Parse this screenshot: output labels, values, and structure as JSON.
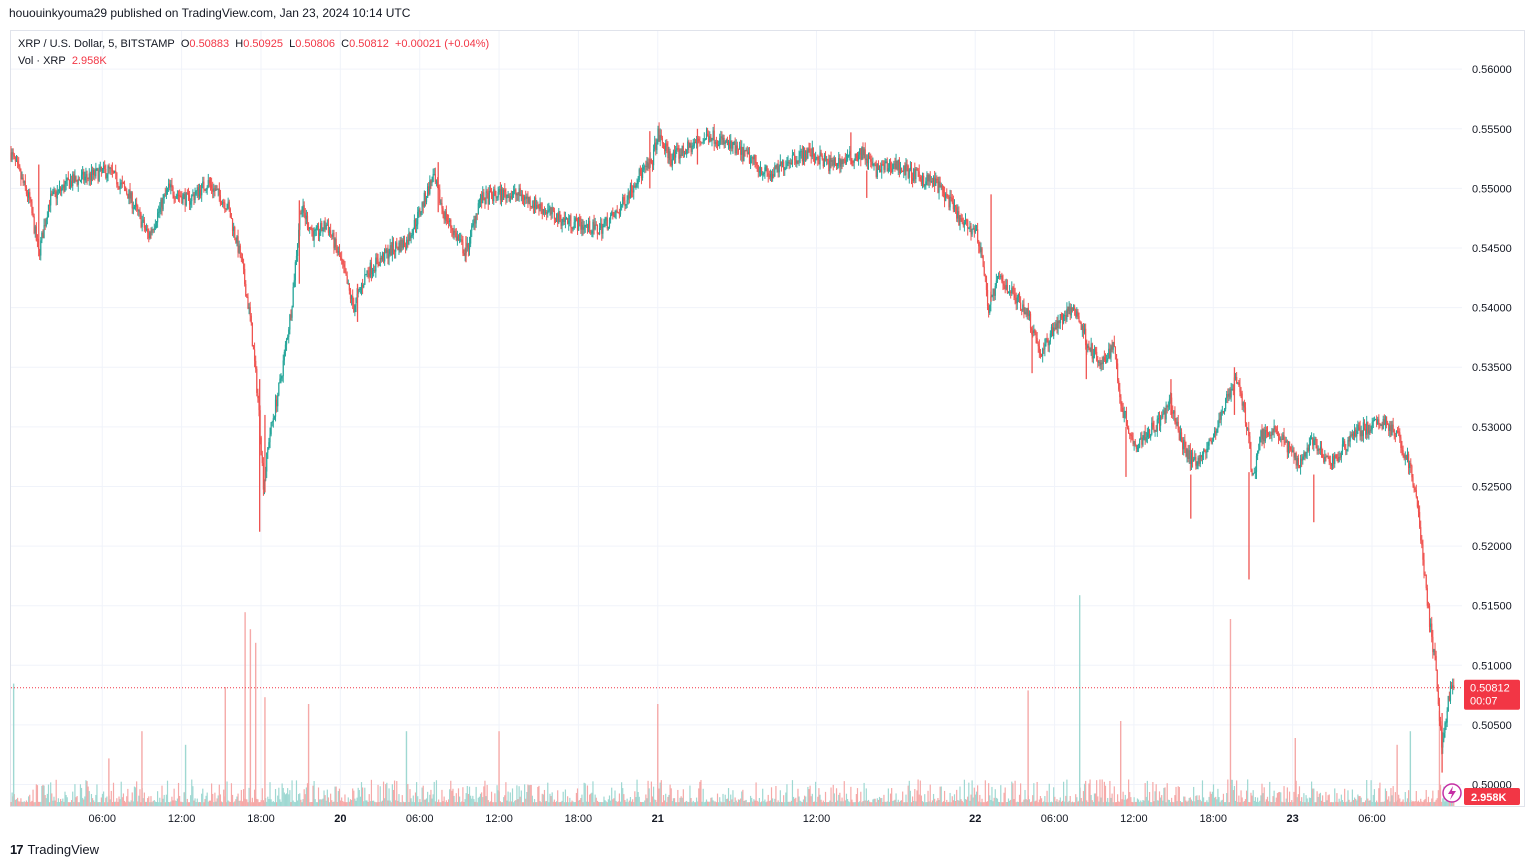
{
  "header": {
    "published_line": "hououinkyouma29 published on TradingView.com, Jan 23, 2024 10:14 UTC"
  },
  "legend": {
    "symbol": "XRP / U.S. Dollar, 5, BITSTAMP",
    "o_label": "O",
    "o_value": "0.50883",
    "h_label": "H",
    "h_value": "0.50925",
    "l_label": "L",
    "l_value": "0.50806",
    "c_label": "C",
    "c_value": "0.50812",
    "change": "+0.00021 (+0.04%)",
    "vol_label": "Vol · XRP",
    "vol_value": "2.958K"
  },
  "price_label": {
    "price": "0.50812",
    "countdown": "00:07"
  },
  "volume_label": "2.958K",
  "footer": {
    "brand": "TradingView"
  },
  "colors": {
    "up": "#26a69a",
    "down": "#ef5350",
    "up_vol": "#9fd8d2",
    "down_vol": "#f5a9a8",
    "last": "#f23645",
    "grid": "#f0f3fa"
  },
  "chart_data": {
    "type": "candlestick",
    "symbol": "XRP / U.S. Dollar",
    "interval": "5",
    "exchange": "BITSTAMP",
    "y_ticks": [
      "0.50000",
      "0.50500",
      "0.51000",
      "0.51500",
      "0.52000",
      "0.52500",
      "0.53000",
      "0.53500",
      "0.54000",
      "0.54500",
      "0.55000",
      "0.55500",
      "0.56000"
    ],
    "ylim": [
      0.4982,
      0.5632
    ],
    "x_ticks": [
      "06:00",
      "12:00",
      "18:00",
      "20",
      "06:00",
      "12:00",
      "18:00",
      "21",
      "12:00",
      "22",
      "06:00",
      "12:00",
      "18:00",
      "23",
      "06:00"
    ],
    "x_tick_hours": [
      6,
      12,
      18,
      24,
      30,
      36,
      42,
      48,
      60,
      72,
      78,
      84,
      90,
      96,
      102
    ],
    "x_range_hours": [
      -0.9,
      108.2
    ],
    "last_price": 0.50812,
    "price_path": [
      [
        -0.9,
        0.553
      ],
      [
        0.5,
        0.549
      ],
      [
        1.2,
        0.5445
      ],
      [
        2.0,
        0.549
      ],
      [
        3.5,
        0.5505
      ],
      [
        5.0,
        0.551
      ],
      [
        6.5,
        0.5515
      ],
      [
        8.0,
        0.5495
      ],
      [
        9.5,
        0.546
      ],
      [
        11.0,
        0.55
      ],
      [
        12.5,
        0.549
      ],
      [
        14.0,
        0.5505
      ],
      [
        15.5,
        0.5485
      ],
      [
        16.5,
        0.544
      ],
      [
        17.2,
        0.539
      ],
      [
        17.8,
        0.532
      ],
      [
        18.2,
        0.525
      ],
      [
        18.6,
        0.529
      ],
      [
        19.5,
        0.534
      ],
      [
        20.3,
        0.54
      ],
      [
        21.0,
        0.5485
      ],
      [
        22.0,
        0.546
      ],
      [
        23.0,
        0.547
      ],
      [
        24.0,
        0.544
      ],
      [
        25.0,
        0.54
      ],
      [
        26.0,
        0.543
      ],
      [
        27.0,
        0.544
      ],
      [
        28.0,
        0.545
      ],
      [
        29.0,
        0.5455
      ],
      [
        30.0,
        0.548
      ],
      [
        31.0,
        0.551
      ],
      [
        31.8,
        0.548
      ],
      [
        32.5,
        0.5465
      ],
      [
        33.5,
        0.5445
      ],
      [
        34.5,
        0.549
      ],
      [
        36.0,
        0.5495
      ],
      [
        37.5,
        0.5495
      ],
      [
        39.0,
        0.5485
      ],
      [
        40.5,
        0.5475
      ],
      [
        42.0,
        0.547
      ],
      [
        43.5,
        0.5465
      ],
      [
        45.0,
        0.548
      ],
      [
        46.5,
        0.551
      ],
      [
        47.5,
        0.552
      ],
      [
        48.0,
        0.5545
      ],
      [
        49.0,
        0.5525
      ],
      [
        50.5,
        0.5535
      ],
      [
        52.0,
        0.5545
      ],
      [
        53.5,
        0.5535
      ],
      [
        55.0,
        0.5525
      ],
      [
        56.5,
        0.551
      ],
      [
        58.0,
        0.5525
      ],
      [
        59.5,
        0.553
      ],
      [
        61.0,
        0.552
      ],
      [
        62.5,
        0.5525
      ],
      [
        63.5,
        0.553
      ],
      [
        64.5,
        0.5515
      ],
      [
        66.0,
        0.552
      ],
      [
        67.5,
        0.551
      ],
      [
        69.0,
        0.5505
      ],
      [
        70.0,
        0.549
      ],
      [
        71.0,
        0.547
      ],
      [
        72.0,
        0.5465
      ],
      [
        72.5,
        0.5445
      ],
      [
        73.0,
        0.54
      ],
      [
        73.8,
        0.5425
      ],
      [
        75.0,
        0.541
      ],
      [
        76.0,
        0.5395
      ],
      [
        77.0,
        0.536
      ],
      [
        78.0,
        0.5385
      ],
      [
        79.5,
        0.54
      ],
      [
        80.5,
        0.537
      ],
      [
        81.5,
        0.535
      ],
      [
        82.5,
        0.537
      ],
      [
        83.0,
        0.532
      ],
      [
        84.0,
        0.5285
      ],
      [
        85.0,
        0.5295
      ],
      [
        86.0,
        0.5305
      ],
      [
        86.8,
        0.532
      ],
      [
        87.5,
        0.529
      ],
      [
        88.5,
        0.527
      ],
      [
        89.5,
        0.528
      ],
      [
        90.5,
        0.5305
      ],
      [
        91.0,
        0.5325
      ],
      [
        91.8,
        0.534
      ],
      [
        92.5,
        0.5305
      ],
      [
        93.0,
        0.5255
      ],
      [
        93.5,
        0.529
      ],
      [
        94.5,
        0.53
      ],
      [
        95.5,
        0.5285
      ],
      [
        96.5,
        0.527
      ],
      [
        97.5,
        0.529
      ],
      [
        98.5,
        0.527
      ],
      [
        99.5,
        0.5275
      ],
      [
        100.5,
        0.5295
      ],
      [
        102.0,
        0.53
      ],
      [
        103.0,
        0.5305
      ],
      [
        104.0,
        0.529
      ],
      [
        104.8,
        0.527
      ],
      [
        105.5,
        0.523
      ],
      [
        106.2,
        0.515
      ],
      [
        106.8,
        0.51
      ],
      [
        107.3,
        0.503
      ],
      [
        107.8,
        0.5075
      ],
      [
        108.2,
        0.5081
      ]
    ],
    "spikes": [
      {
        "x": 1.2,
        "low": 0.5443,
        "high": 0.552
      },
      {
        "x": 17.9,
        "low": 0.5212,
        "high": 0.534
      },
      {
        "x": 18.3,
        "low": 0.5245,
        "high": 0.531
      },
      {
        "x": 20.9,
        "low": 0.542,
        "high": 0.549
      },
      {
        "x": 25.3,
        "low": 0.5388,
        "high": 0.542
      },
      {
        "x": 31.4,
        "low": 0.548,
        "high": 0.5522
      },
      {
        "x": 33.5,
        "low": 0.5438,
        "high": 0.546
      },
      {
        "x": 47.4,
        "low": 0.55,
        "high": 0.5548
      },
      {
        "x": 51.0,
        "low": 0.552,
        "high": 0.555
      },
      {
        "x": 62.6,
        "low": 0.552,
        "high": 0.5547
      },
      {
        "x": 63.8,
        "low": 0.5492,
        "high": 0.5515
      },
      {
        "x": 73.2,
        "low": 0.5405,
        "high": 0.5495
      },
      {
        "x": 76.3,
        "low": 0.5345,
        "high": 0.538
      },
      {
        "x": 80.4,
        "low": 0.534,
        "high": 0.5372
      },
      {
        "x": 83.4,
        "low": 0.5258,
        "high": 0.53
      },
      {
        "x": 86.8,
        "low": 0.531,
        "high": 0.534
      },
      {
        "x": 88.3,
        "low": 0.5223,
        "high": 0.526
      },
      {
        "x": 91.6,
        "low": 0.531,
        "high": 0.535
      },
      {
        "x": 92.7,
        "low": 0.5172,
        "high": 0.5262
      },
      {
        "x": 97.6,
        "low": 0.522,
        "high": 0.526
      },
      {
        "x": 107.3,
        "low": 0.501,
        "high": 0.506
      }
    ],
    "volume_max_label": "2.958K",
    "volume_spikes": [
      {
        "x": 16.8,
        "v": 0.57,
        "dir": "down"
      },
      {
        "x": 17.2,
        "v": 0.52,
        "dir": "down"
      },
      {
        "x": 17.6,
        "v": 0.48,
        "dir": "down"
      },
      {
        "x": 15.3,
        "v": 0.35,
        "dir": "down"
      },
      {
        "x": 18.3,
        "v": 0.32,
        "dir": "down"
      },
      {
        "x": 21.6,
        "v": 0.3,
        "dir": "down"
      },
      {
        "x": -0.7,
        "v": 0.36,
        "dir": "up"
      },
      {
        "x": 79.9,
        "v": 0.62,
        "dir": "up"
      },
      {
        "x": 91.3,
        "v": 0.55,
        "dir": "down"
      },
      {
        "x": 48.0,
        "v": 0.3,
        "dir": "down"
      },
      {
        "x": 76.0,
        "v": 0.34,
        "dir": "down"
      },
      {
        "x": 83.0,
        "v": 0.25,
        "dir": "down"
      },
      {
        "x": 104.9,
        "v": 0.22,
        "dir": "up"
      },
      {
        "x": 107.1,
        "v": 0.28,
        "dir": "down"
      },
      {
        "x": 12.3,
        "v": 0.18,
        "dir": "up"
      },
      {
        "x": 29.0,
        "v": 0.22,
        "dir": "up"
      },
      {
        "x": 36.0,
        "v": 0.22,
        "dir": "down"
      },
      {
        "x": 96.2,
        "v": 0.2,
        "dir": "down"
      },
      {
        "x": 103.9,
        "v": 0.18,
        "dir": "down"
      },
      {
        "x": 9.0,
        "v": 0.22,
        "dir": "down"
      },
      {
        "x": 6.5,
        "v": 0.14,
        "dir": "down"
      }
    ]
  }
}
